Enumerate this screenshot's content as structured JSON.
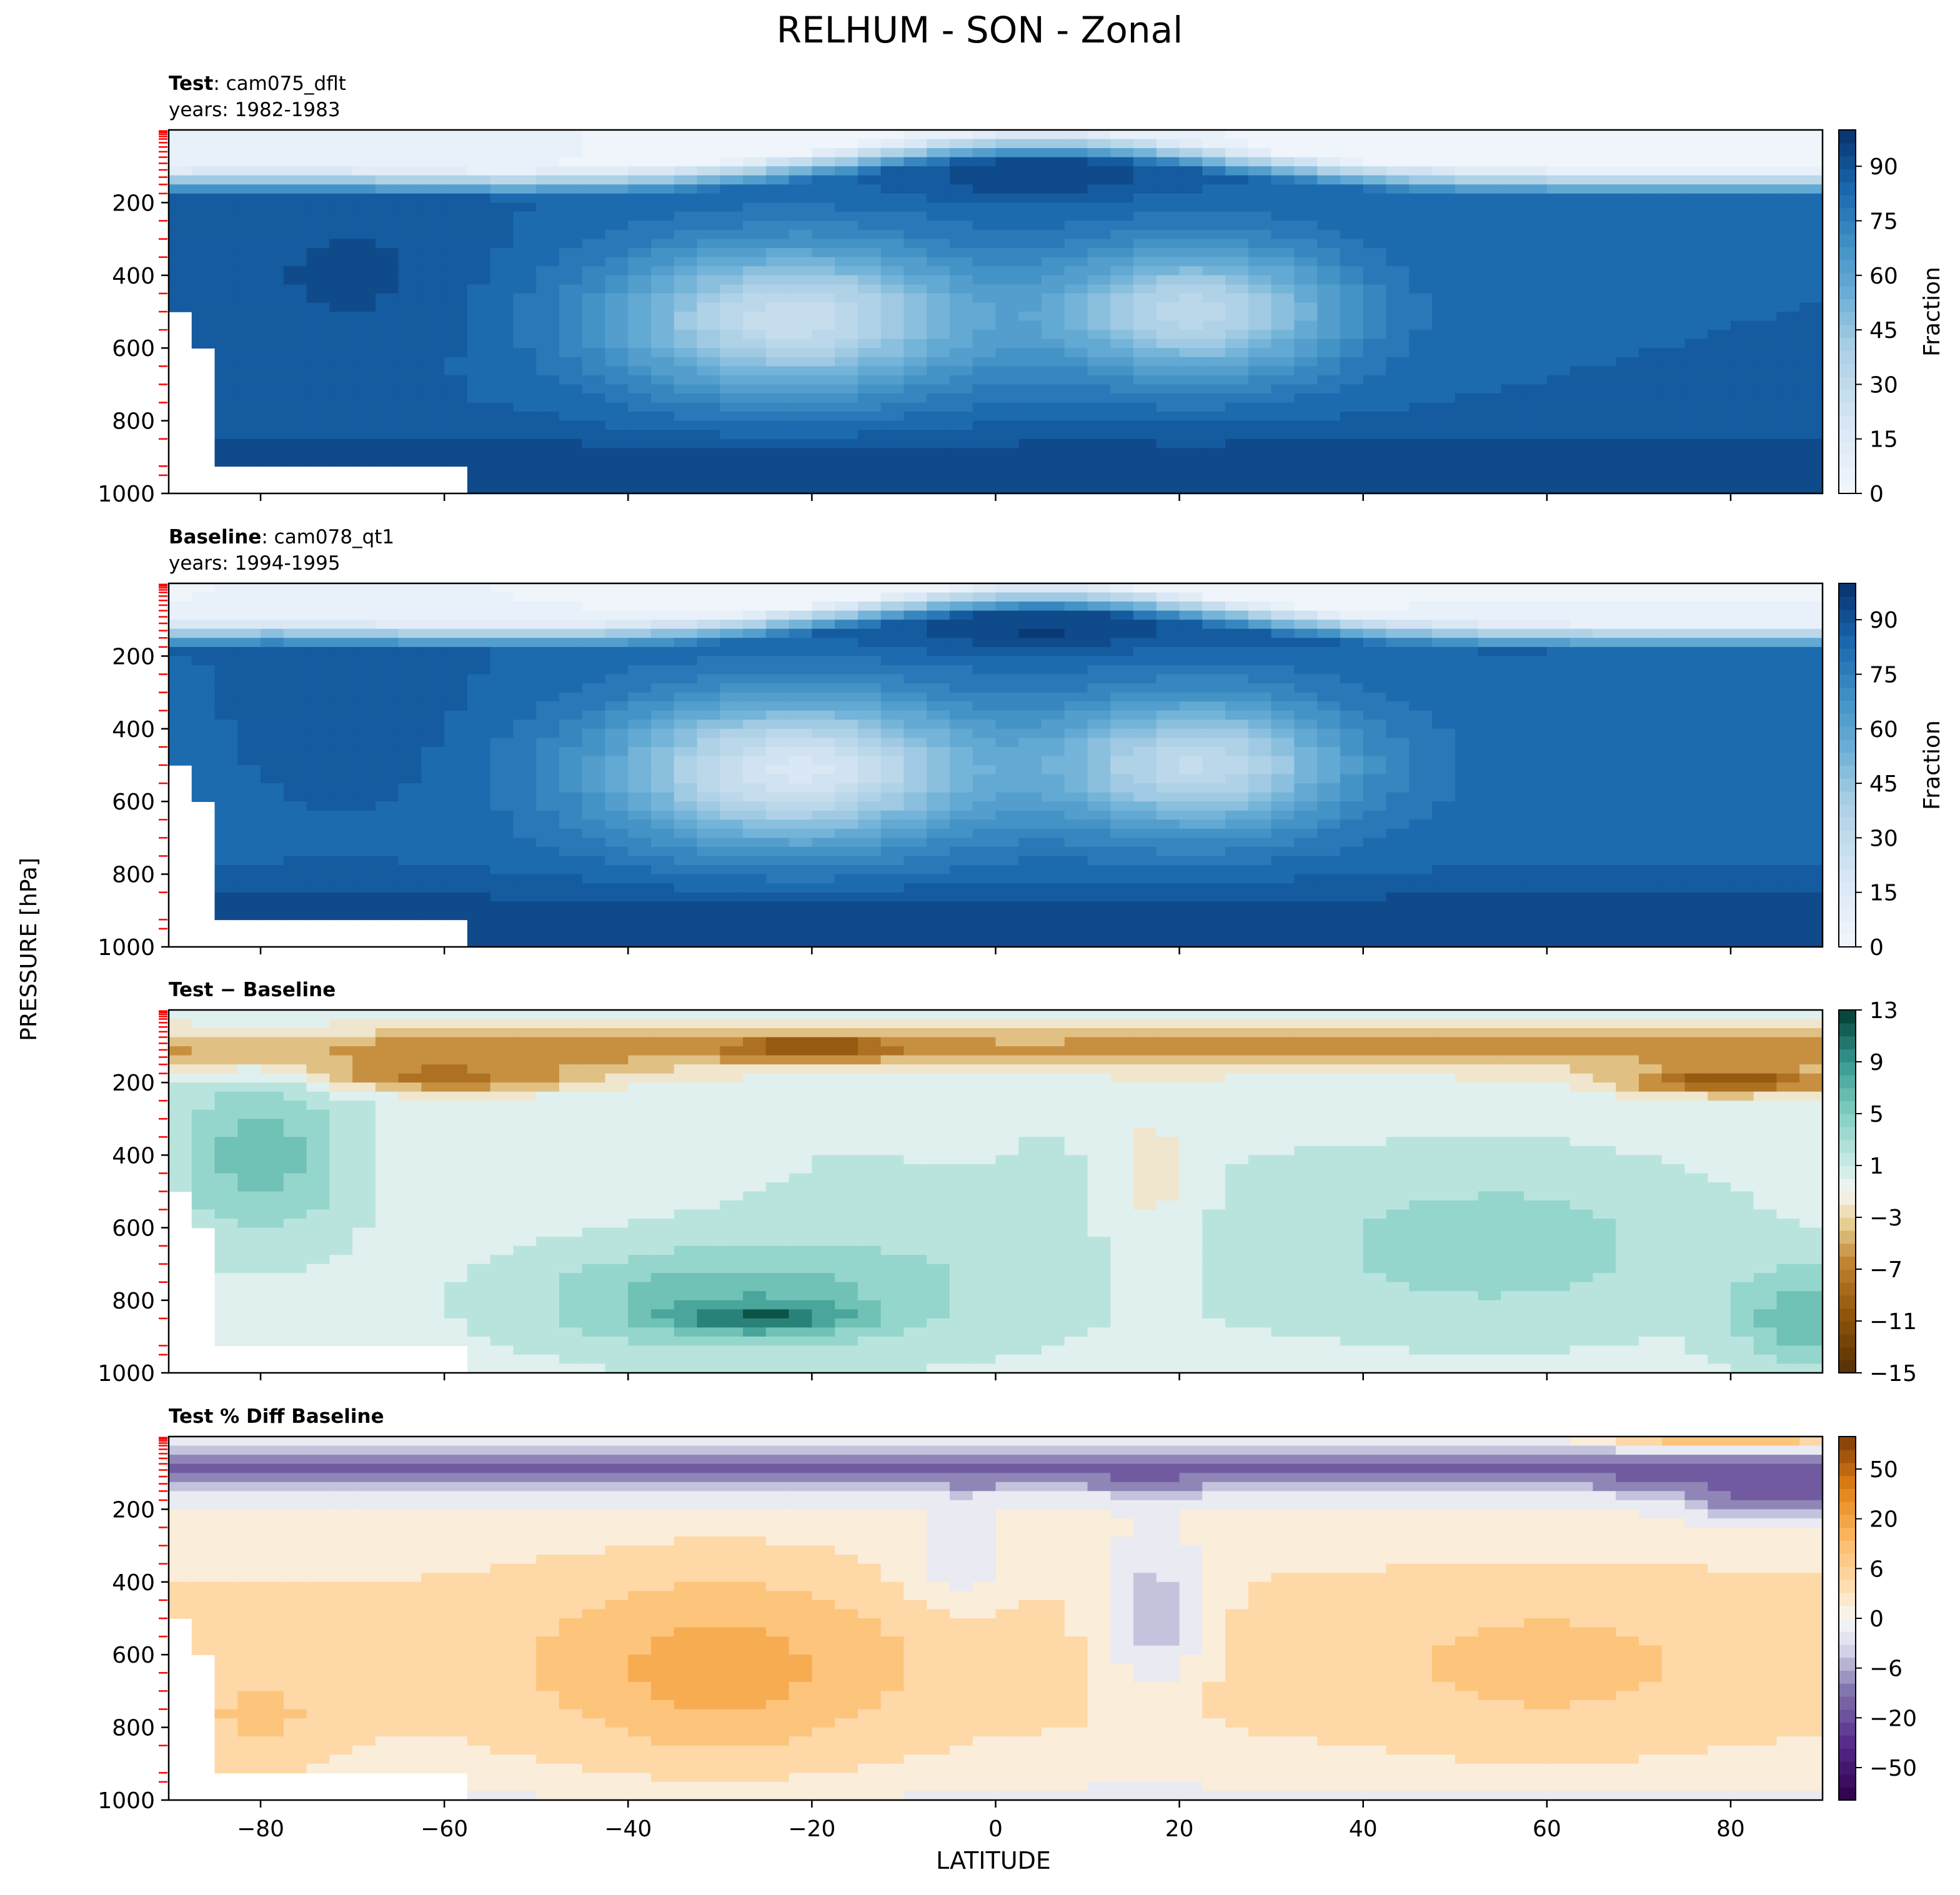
{
  "figure": {
    "title": "RELHUM - SON - Zonal",
    "ylabel": "PRESSURE [hPa]",
    "xlabel": "LATITUDE"
  },
  "chart_data": [
    {
      "type": "heatmap",
      "panel": "test",
      "label_bold": "Test",
      "label_rest": ": cam075_dflt",
      "years": "years: 1982-1983",
      "x": "latitude",
      "xlim": [
        -90,
        90
      ],
      "ylim": [
        1000,
        0
      ],
      "y_ticks": [
        200,
        400,
        600,
        800,
        1000
      ],
      "colormap": "Blues",
      "colorbar_label": "Fraction",
      "colorbar_ticks": [
        0,
        15,
        30,
        45,
        60,
        75,
        90
      ],
      "colorbar_range": [
        0,
        100
      ],
      "features": {
        "upper_dry_layer_top_hPa": 50,
        "moist_band_lat_rows": [
          [
            -90,
            90,
            400,
            0.85
          ],
          [
            -20,
            20,
            100,
            0.9
          ]
        ],
        "subtropical_dry_minima": [
          {
            "lat": -22,
            "p": 500,
            "value": 22
          },
          {
            "lat": 22,
            "p": 500,
            "value": 27
          }
        ]
      }
    },
    {
      "type": "heatmap",
      "panel": "baseline",
      "label_bold": "Baseline",
      "label_rest": ": cam078_qt1",
      "years": "years: 1994-1995",
      "x": "latitude",
      "xlim": [
        -90,
        90
      ],
      "ylim": [
        1000,
        0
      ],
      "y_ticks": [
        200,
        400,
        600,
        800,
        1000
      ],
      "colormap": "Blues",
      "colorbar_label": "Fraction",
      "colorbar_ticks": [
        0,
        15,
        30,
        45,
        60,
        75,
        90
      ],
      "colorbar_range": [
        0,
        100
      ]
    },
    {
      "type": "heatmap",
      "panel": "difference",
      "label_bold": "Test − Baseline",
      "x": "latitude",
      "xlim": [
        -90,
        90
      ],
      "ylim": [
        1000,
        0
      ],
      "y_ticks": [
        200,
        400,
        600,
        800,
        1000
      ],
      "colormap": "BrBG",
      "colorbar_ticks": [
        13,
        9,
        5,
        1,
        "−3",
        "−7",
        "−11",
        "−15"
      ],
      "colorbar_range": [
        -15,
        13
      ]
    },
    {
      "type": "heatmap",
      "panel": "percent_difference",
      "label_bold": "Test % Diff Baseline",
      "x": "latitude",
      "xlim": [
        -90,
        90
      ],
      "ylim": [
        1000,
        0
      ],
      "y_ticks": [
        200,
        400,
        600,
        800,
        1000
      ],
      "x_ticks": [
        "−80",
        "−60",
        "−40",
        "−20",
        "0",
        "20",
        "40",
        "60",
        "80"
      ],
      "colormap": "PuOr",
      "colorbar_ticks": [
        50,
        20,
        6,
        0,
        "−6",
        "−20",
        "−50"
      ],
      "colorbar_range": [
        -70,
        70
      ]
    }
  ],
  "colors": {
    "blues_low": "#f3f7fc",
    "blues_high": "#08306b",
    "brbg_green": "#01665e",
    "brbg_brown": "#8c510a",
    "puor_orange": "#e08214",
    "puor_purple": "#542788",
    "pressure_ticks_red": "#ff0000"
  }
}
